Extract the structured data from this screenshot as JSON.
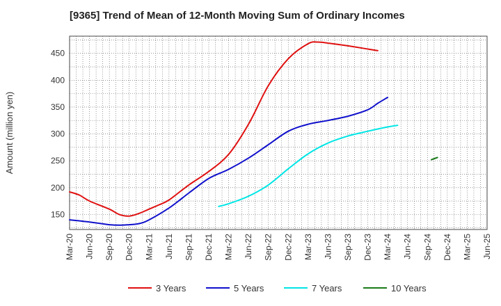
{
  "chart_data": {
    "type": "line",
    "title": "[9365]  Trend of Mean of 12-Month Moving Sum of Ordinary Incomes",
    "xlabel": "",
    "ylabel": "Amount (million yen)",
    "ylim": [
      122,
      482
    ],
    "yticks": [
      150,
      200,
      250,
      300,
      350,
      400,
      450
    ],
    "grid": true,
    "legend_position": "bottom",
    "categories": [
      "Mar-20",
      "Jun-20",
      "Sep-20",
      "Dec-20",
      "Mar-21",
      "Jun-21",
      "Sep-21",
      "Dec-21",
      "Mar-22",
      "Jun-22",
      "Sep-22",
      "Dec-22",
      "Mar-23",
      "Jun-23",
      "Sep-23",
      "Dec-23",
      "Mar-24",
      "Jun-24",
      "Sep-24",
      "Dec-24",
      "Mar-25",
      "Jun-25"
    ],
    "series": [
      {
        "name": "3 Years",
        "color": "#e01010",
        "points": [
          [
            0,
            192
          ],
          [
            0.5,
            186
          ],
          [
            1,
            175
          ],
          [
            2,
            160
          ],
          [
            2.5,
            150
          ],
          [
            3,
            147
          ],
          [
            3.5,
            152
          ],
          [
            4,
            160
          ],
          [
            4.5,
            168
          ],
          [
            5,
            177
          ],
          [
            6,
            205
          ],
          [
            7,
            230
          ],
          [
            8,
            262
          ],
          [
            9,
            318
          ],
          [
            10,
            390
          ],
          [
            11,
            440
          ],
          [
            12,
            468
          ],
          [
            12.5,
            471
          ],
          [
            13,
            469
          ],
          [
            14,
            464
          ],
          [
            15,
            458
          ],
          [
            15.5,
            455
          ]
        ]
      },
      {
        "name": "5 Years",
        "color": "#1010cc",
        "points": [
          [
            0,
            140
          ],
          [
            1,
            136
          ],
          [
            2,
            131
          ],
          [
            2.5,
            130
          ],
          [
            3,
            131
          ],
          [
            3.5,
            133
          ],
          [
            4,
            140
          ],
          [
            5,
            162
          ],
          [
            6,
            190
          ],
          [
            7,
            217
          ],
          [
            8,
            234
          ],
          [
            9,
            255
          ],
          [
            10,
            280
          ],
          [
            11,
            305
          ],
          [
            12,
            318
          ],
          [
            13,
            325
          ],
          [
            14,
            333
          ],
          [
            15,
            345
          ],
          [
            15.5,
            357
          ],
          [
            16,
            368
          ]
        ]
      },
      {
        "name": "7 Years",
        "color": "#00e5e5",
        "points": [
          [
            7.5,
            165
          ],
          [
            8,
            170
          ],
          [
            9,
            184
          ],
          [
            10,
            205
          ],
          [
            11,
            235
          ],
          [
            12,
            263
          ],
          [
            13,
            283
          ],
          [
            14,
            296
          ],
          [
            15,
            305
          ],
          [
            16,
            313
          ],
          [
            16.5,
            316
          ]
        ]
      },
      {
        "name": "10 Years",
        "color": "#1a7a1a",
        "points": [
          [
            18.2,
            252
          ],
          [
            18.5,
            256
          ]
        ]
      }
    ]
  }
}
